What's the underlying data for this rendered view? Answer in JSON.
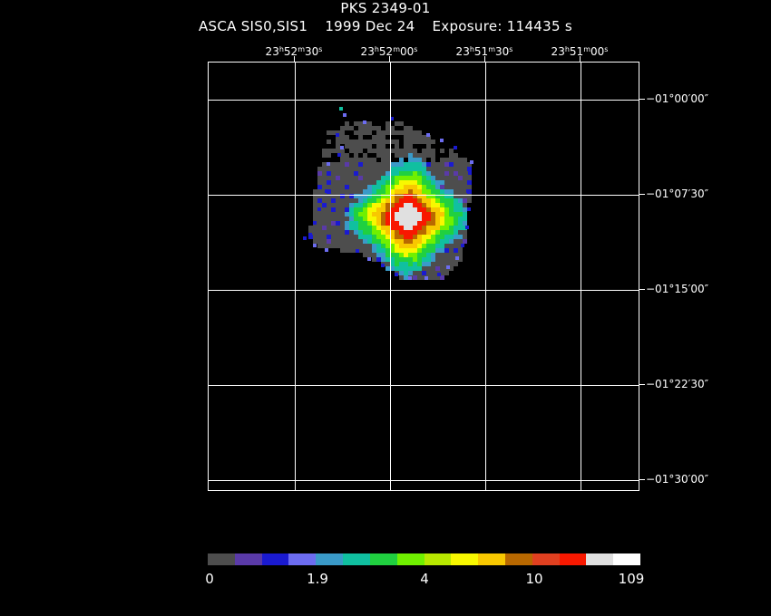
{
  "title": "PKS 2349-01",
  "subtitle": {
    "instrument": "ASCA SIS0,SIS1",
    "date": "1999 Dec 24",
    "exposure": "Exposure: 114435 s"
  },
  "ra_labels": [
    {
      "h": "23",
      "m": "52",
      "s": "30"
    },
    {
      "h": "23",
      "m": "52",
      "s": "00"
    },
    {
      "h": "23",
      "m": "51",
      "s": "30"
    },
    {
      "h": "23",
      "m": "51",
      "s": "00"
    }
  ],
  "dec_labels": [
    "−01°00′00″",
    "−01°07′30″",
    "−01°15′00″",
    "−01°22′30″",
    "−01°30′00″"
  ],
  "colorbar": {
    "colors": [
      "#4d4d4d",
      "#5a3aa8",
      "#1a1ad0",
      "#6c6cf0",
      "#3a9ac8",
      "#10c0a0",
      "#20d040",
      "#70f000",
      "#b8e800",
      "#f8f800",
      "#f8c800",
      "#b86800",
      "#e04020",
      "#f81800",
      "#e0e0e0",
      "#ffffff"
    ],
    "labels": [
      "0",
      "1.9",
      "4",
      "10",
      "109"
    ]
  }
}
